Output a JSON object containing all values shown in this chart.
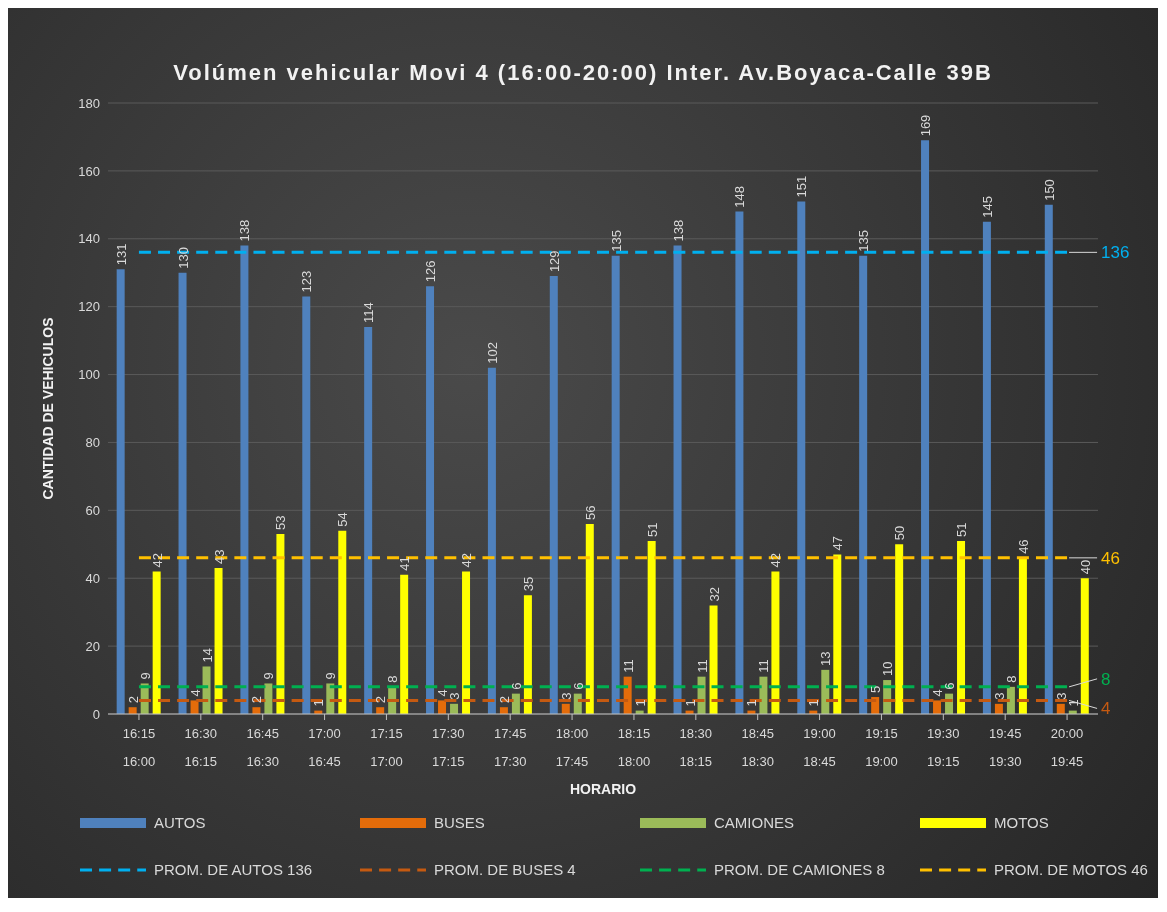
{
  "chart_data": {
    "type": "bar",
    "title": "Volúmen vehicular Movi 4 (16:00-20:00) Inter. Av.Boyaca-Calle 39B",
    "xlabel": "HORARIO",
    "ylabel": "CANTIDAD DE VEHICULOS",
    "categories": [
      "16:15\n16:00",
      "16:30\n16:15",
      "16:45\n16:30",
      "17:00\n16:45",
      "17:15\n17:00",
      "17:30\n17:15",
      "17:45\n17:30",
      "18:00\n17:45",
      "18:15\n18:00",
      "18:30\n18:15",
      "18:45\n18:30",
      "19:00\n18:45",
      "19:15\n19:00",
      "19:30\n19:15",
      "19:45\n19:30",
      "20:00\n19:45"
    ],
    "ylim": [
      0,
      180
    ],
    "yticks": [
      0,
      20,
      40,
      60,
      80,
      100,
      120,
      140,
      160,
      180
    ],
    "grid": "y",
    "legend": "bottom",
    "data_labels": true,
    "series": [
      {
        "name": "AUTOS",
        "color": "#4f81bd",
        "values": [
          131,
          130,
          138,
          123,
          114,
          126,
          102,
          129,
          135,
          138,
          148,
          151,
          135,
          169,
          145,
          150
        ]
      },
      {
        "name": "BUSES",
        "color": "#e46c0a",
        "values": [
          2,
          4,
          2,
          1,
          2,
          4,
          2,
          3,
          11,
          1,
          1,
          1,
          5,
          4,
          3,
          3
        ]
      },
      {
        "name": "CAMIONES",
        "color": "#9bbb59",
        "values": [
          9,
          14,
          9,
          9,
          8,
          3,
          6,
          6,
          1,
          11,
          11,
          13,
          10,
          6,
          8,
          1
        ]
      },
      {
        "name": "MOTOS",
        "color": "#ffff00",
        "values": [
          42,
          43,
          53,
          54,
          41,
          42,
          35,
          56,
          51,
          32,
          42,
          47,
          50,
          51,
          46,
          40
        ]
      },
      {
        "name": "PROM. DE AUTOS 136",
        "type": "line",
        "line_style": "dashed",
        "marker": "none",
        "color": "#00b0f0",
        "values": [
          136,
          136,
          136,
          136,
          136,
          136,
          136,
          136,
          136,
          136,
          136,
          136,
          136,
          136,
          136,
          136
        ],
        "value_labels": [
          null,
          null,
          null,
          null,
          null,
          null,
          null,
          null,
          null,
          null,
          null,
          null,
          null,
          null,
          null,
          "136"
        ]
      },
      {
        "name": "PROM. DE BUSES 4",
        "type": "line",
        "line_style": "dashed",
        "marker": "none",
        "color": "#c55a11",
        "values": [
          4,
          4,
          4,
          4,
          4,
          4,
          4,
          4,
          4,
          4,
          4,
          4,
          4,
          4,
          4,
          4
        ],
        "value_labels": [
          null,
          null,
          null,
          null,
          null,
          null,
          null,
          null,
          null,
          null,
          null,
          null,
          null,
          null,
          null,
          "4"
        ]
      },
      {
        "name": "PROM. DE CAMIONES 8",
        "type": "line",
        "line_style": "dashed",
        "marker": "none",
        "color": "#00b050",
        "values": [
          8,
          8,
          8,
          8,
          8,
          8,
          8,
          8,
          8,
          8,
          8,
          8,
          8,
          8,
          8,
          8
        ],
        "value_labels": [
          null,
          null,
          null,
          null,
          null,
          null,
          null,
          null,
          null,
          null,
          null,
          null,
          null,
          null,
          null,
          "8"
        ]
      },
      {
        "name": "PROM. DE MOTOS 46",
        "type": "line",
        "line_style": "dashed",
        "marker": "none",
        "color": "#ffc000",
        "values": [
          46,
          46,
          46,
          46,
          46,
          46,
          46,
          46,
          46,
          46,
          46,
          46,
          46,
          46,
          46,
          46
        ],
        "value_labels": [
          null,
          null,
          null,
          null,
          null,
          null,
          null,
          null,
          null,
          null,
          null,
          null,
          null,
          null,
          null,
          "46"
        ]
      }
    ]
  }
}
